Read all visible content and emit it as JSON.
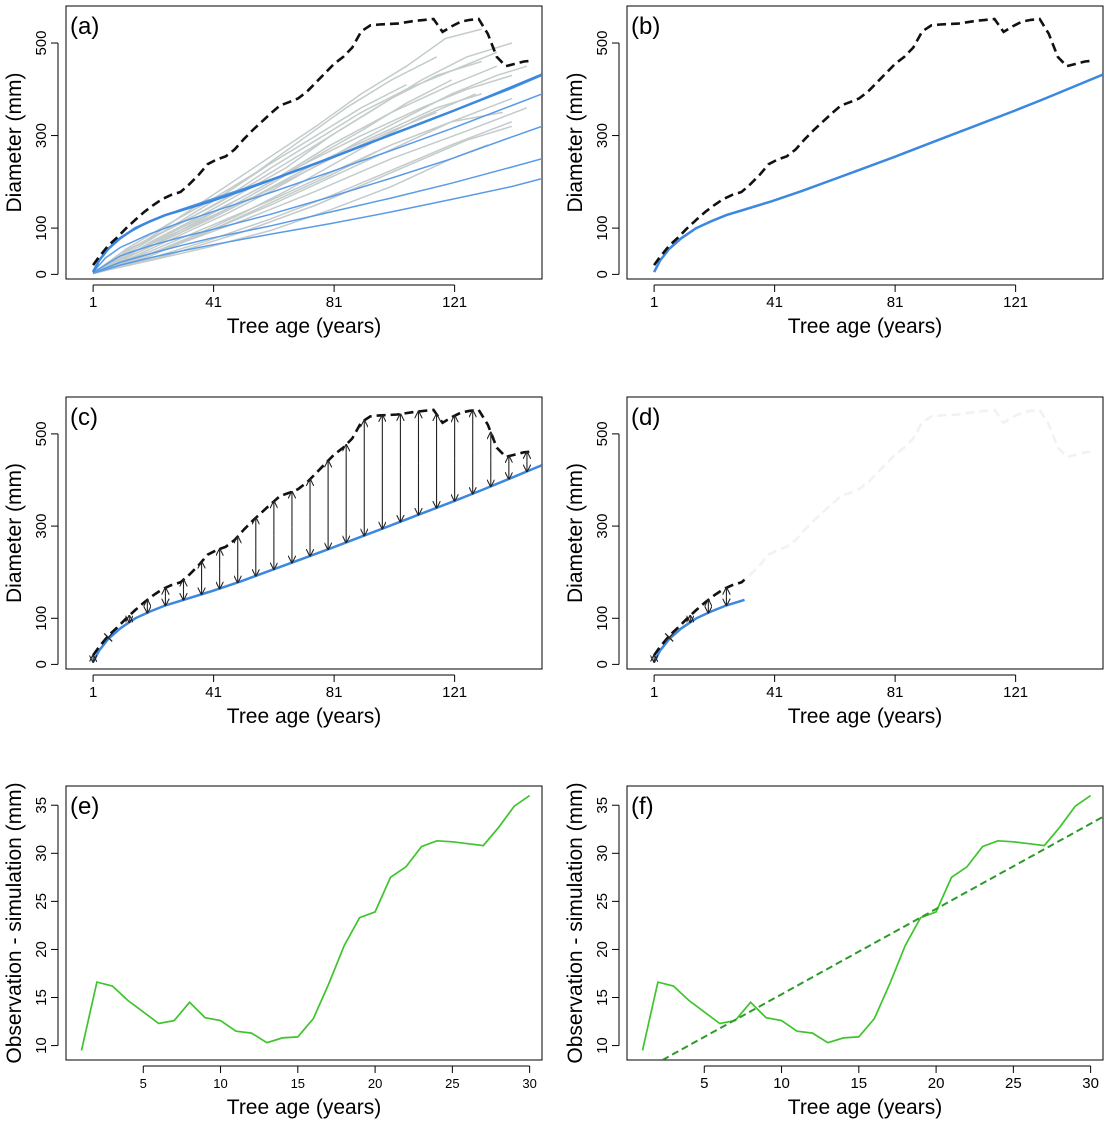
{
  "colors": {
    "observed": "#111111",
    "sample_trees": "#c3cbcb",
    "simulation": "#3c87e0",
    "simulation_light": "#5a9be6",
    "residual": "#3dc52b",
    "trend": "#2e9a2a",
    "arrow": "#222222"
  },
  "chart_data": [
    {
      "id": "a",
      "type": "line",
      "panel_label": "(a)",
      "xlabel": "Tree age (years)",
      "ylabel": "Diameter (mm)",
      "xlim": [
        -8,
        150
      ],
      "ylim": [
        -10,
        580
      ],
      "xticks": [
        1,
        41,
        81,
        121
      ],
      "yticks": [
        0,
        100,
        300,
        500
      ],
      "grid": false,
      "legend": "none",
      "observed_max": {
        "x": [
          1,
          3,
          6,
          9,
          12,
          15,
          18,
          21,
          24,
          27,
          30,
          33,
          36,
          39,
          42,
          45,
          48,
          51,
          54,
          57,
          60,
          63,
          66,
          69,
          72,
          75,
          78,
          81,
          84,
          87,
          90,
          93,
          96,
          99,
          102,
          105,
          108,
          111,
          114,
          117,
          120,
          123,
          126,
          129,
          132,
          135,
          138,
          141,
          144,
          147
        ],
        "y": [
          20,
          38,
          62,
          80,
          100,
          118,
          135,
          150,
          163,
          172,
          178,
          195,
          215,
          238,
          248,
          255,
          270,
          292,
          312,
          330,
          348,
          365,
          372,
          380,
          395,
          415,
          435,
          455,
          470,
          490,
          525,
          538,
          540,
          541,
          542,
          545,
          548,
          550,
          552,
          524,
          536,
          546,
          550,
          552,
          520,
          470,
          450,
          455,
          460,
          462
        ]
      },
      "simulations": [
        {
          "x": [
            1,
            5,
            10,
            20,
            30,
            40,
            60,
            80,
            100,
            120,
            140,
            150
          ],
          "y": [
            8,
            50,
            80,
            115,
            140,
            162,
            205,
            252,
            302,
            352,
            402,
            430
          ]
        },
        {
          "x": [
            1,
            5,
            10,
            20,
            30,
            40,
            60,
            80,
            100,
            120,
            140,
            150
          ],
          "y": [
            5,
            35,
            58,
            88,
            112,
            134,
            177,
            222,
            268,
            315,
            365,
            390
          ]
        },
        {
          "x": [
            1,
            10,
            20,
            30,
            40,
            60,
            80,
            100,
            120,
            140,
            150
          ],
          "y": [
            4,
            40,
            62,
            80,
            96,
            130,
            168,
            208,
            250,
            297,
            320
          ]
        },
        {
          "x": [
            1,
            10,
            20,
            30,
            40,
            60,
            80,
            100,
            120,
            140,
            150
          ],
          "y": [
            3,
            26,
            45,
            62,
            78,
            105,
            135,
            165,
            197,
            232,
            250
          ]
        },
        {
          "x": [
            1,
            10,
            20,
            30,
            40,
            60,
            80,
            100,
            120,
            140,
            150
          ],
          "y": [
            2,
            20,
            36,
            50,
            63,
            87,
            110,
            135,
            162,
            190,
            207
          ]
        }
      ],
      "highlight": {
        "x": [
          1,
          3,
          6,
          10,
          15,
          20,
          25,
          30,
          40,
          50,
          60,
          70,
          80,
          90,
          100,
          110,
          120,
          130,
          140,
          150
        ],
        "y": [
          5,
          30,
          55,
          78,
          100,
          115,
          128,
          138,
          158,
          180,
          204,
          228,
          252,
          277,
          302,
          327,
          352,
          378,
          405,
          432
        ]
      },
      "samples": [
        {
          "x": [
            1,
            10,
            20,
            30,
            45,
            60,
            75,
            90,
            105,
            118,
            130
          ],
          "y": [
            3,
            40,
            80,
            125,
            190,
            255,
            320,
            390,
            450,
            510,
            530
          ]
        },
        {
          "x": [
            1,
            10,
            20,
            35,
            50,
            65,
            80,
            95,
            110,
            125,
            140
          ],
          "y": [
            2,
            30,
            70,
            120,
            175,
            230,
            300,
            360,
            420,
            470,
            500
          ]
        },
        {
          "x": [
            1,
            15,
            30,
            45,
            60,
            75,
            90,
            105,
            120,
            135
          ],
          "y": [
            4,
            60,
            110,
            165,
            230,
            290,
            350,
            400,
            440,
            480
          ]
        },
        {
          "x": [
            1,
            12,
            25,
            40,
            55,
            70,
            85,
            100,
            115
          ],
          "y": [
            2,
            55,
            105,
            160,
            220,
            290,
            360,
            420,
            470
          ]
        },
        {
          "x": [
            1,
            15,
            30,
            45,
            60,
            75,
            90,
            105,
            120,
            135,
            145
          ],
          "y": [
            3,
            40,
            85,
            130,
            180,
            235,
            290,
            340,
            390,
            430,
            450
          ]
        },
        {
          "x": [
            1,
            20,
            40,
            60,
            80,
            100,
            120,
            140
          ],
          "y": [
            2,
            45,
            95,
            150,
            210,
            270,
            330,
            380
          ]
        },
        {
          "x": [
            1,
            20,
            40,
            60,
            80,
            100,
            120,
            135
          ],
          "y": [
            2,
            60,
            130,
            200,
            280,
            350,
            410,
            450
          ]
        },
        {
          "x": [
            1,
            25,
            50,
            75,
            100,
            125,
            145
          ],
          "y": [
            2,
            55,
            115,
            180,
            250,
            310,
            360
          ]
        },
        {
          "x": [
            1,
            10,
            25,
            40,
            55,
            70,
            85,
            100,
            115,
            130
          ],
          "y": [
            3,
            45,
            95,
            145,
            200,
            260,
            320,
            380,
            430,
            460
          ]
        },
        {
          "x": [
            1,
            20,
            40,
            60,
            80,
            100,
            120,
            140
          ],
          "y": [
            2,
            35,
            75,
            120,
            170,
            225,
            280,
            330
          ]
        },
        {
          "x": [
            1,
            15,
            30,
            45,
            60,
            75,
            90,
            105
          ],
          "y": [
            3,
            55,
            115,
            175,
            240,
            300,
            360,
            410
          ]
        },
        {
          "x": [
            1,
            20,
            40,
            60,
            80,
            100,
            120,
            132
          ],
          "y": [
            2,
            30,
            60,
            95,
            140,
            190,
            250,
            280
          ]
        },
        {
          "x": [
            1,
            15,
            30,
            50,
            70,
            90,
            110,
            125,
            140
          ],
          "y": [
            3,
            50,
            100,
            165,
            235,
            300,
            360,
            400,
            430
          ]
        },
        {
          "x": [
            1,
            25,
            50,
            75,
            100,
            125,
            140
          ],
          "y": [
            2,
            40,
            90,
            150,
            220,
            290,
            320
          ]
        },
        {
          "x": [
            1,
            15,
            30,
            45,
            60,
            75,
            90,
            105,
            120
          ],
          "y": [
            2,
            45,
            90,
            140,
            195,
            255,
            310,
            370,
            420
          ]
        },
        {
          "x": [
            1,
            20,
            40,
            60,
            80,
            100,
            115
          ],
          "y": [
            3,
            60,
            120,
            185,
            250,
            310,
            350
          ]
        },
        {
          "x": [
            1,
            10,
            20,
            35,
            50,
            65,
            80,
            95,
            110,
            128
          ],
          "y": [
            2,
            20,
            45,
            85,
            130,
            180,
            235,
            290,
            340,
            390
          ]
        },
        {
          "x": [
            1,
            20,
            40,
            60,
            80,
            100,
            120,
            137
          ],
          "y": [
            2,
            50,
            105,
            160,
            220,
            280,
            330,
            350
          ]
        },
        {
          "x": [
            1,
            15,
            35,
            55,
            75,
            95,
            115,
            130
          ],
          "y": [
            3,
            50,
            110,
            170,
            240,
            300,
            360,
            390
          ]
        },
        {
          "x": [
            1,
            20,
            40,
            60,
            80,
            95
          ],
          "y": [
            2,
            40,
            95,
            155,
            215,
            265
          ]
        }
      ]
    },
    {
      "id": "b",
      "type": "line",
      "panel_label": "(b)",
      "xlabel": "Tree age (years)",
      "ylabel": "Diameter (mm)",
      "xlim": [
        -8,
        150
      ],
      "ylim": [
        -10,
        580
      ],
      "xticks": [
        1,
        41,
        81,
        121
      ],
      "yticks": [
        0,
        100,
        300,
        500
      ],
      "grid": false,
      "legend": "none"
    },
    {
      "id": "c",
      "type": "line",
      "panel_label": "(c)",
      "xlabel": "Tree age (years)",
      "ylabel": "Diameter (mm)",
      "xlim": [
        -8,
        150
      ],
      "ylim": [
        -10,
        580
      ],
      "xticks": [
        1,
        41,
        81,
        121
      ],
      "yticks": [
        0,
        100,
        300,
        500
      ],
      "grid": false,
      "legend": "none",
      "arrow_ages": [
        1,
        6,
        13,
        19,
        25,
        31,
        37,
        43,
        49,
        55,
        61,
        67,
        73,
        79,
        85,
        91,
        97,
        103,
        109,
        115,
        121,
        127,
        133,
        139,
        145
      ]
    },
    {
      "id": "d",
      "type": "line",
      "panel_label": "(d)",
      "xlabel": "Tree age (years)",
      "ylabel": "Diameter (mm)",
      "xlim": [
        -8,
        150
      ],
      "ylim": [
        -10,
        580
      ],
      "xticks": [
        1,
        41,
        81,
        121
      ],
      "yticks": [
        0,
        100,
        300,
        500
      ],
      "grid": false,
      "legend": "none",
      "cutoff_age": 31,
      "arrow_ages": [
        1,
        6,
        13,
        19,
        25
      ]
    },
    {
      "id": "e",
      "type": "line",
      "panel_label": "(e)",
      "xlabel": "Tree age (years)",
      "ylabel": "Observation - simulation (mm)",
      "xlim": [
        0,
        30.8
      ],
      "ylim": [
        8.5,
        37
      ],
      "xticks": [
        5,
        10,
        15,
        20,
        25,
        30
      ],
      "yticks": [
        10,
        15,
        20,
        25,
        30,
        35
      ],
      "grid": false,
      "legend": "none",
      "series": [
        {
          "x": [
            1,
            2,
            3,
            4,
            5,
            6,
            7,
            8,
            9,
            10,
            11,
            12,
            13,
            14,
            15,
            16,
            17,
            18,
            19,
            20,
            21,
            22,
            23,
            24,
            25,
            26,
            27,
            28,
            29,
            30
          ],
          "y": [
            9.5,
            16.6,
            16.2,
            14.7,
            13.5,
            12.3,
            12.6,
            14.5,
            12.9,
            12.6,
            11.5,
            11.3,
            10.3,
            10.8,
            10.9,
            12.8,
            16.4,
            20.4,
            23.3,
            23.9,
            27.5,
            28.6,
            30.7,
            31.3,
            31.2,
            31.0,
            30.8,
            32.7,
            34.9,
            36.0
          ]
        }
      ]
    },
    {
      "id": "f",
      "type": "line",
      "panel_label": "(f)",
      "xlabel": "Tree age (years)",
      "ylabel": "Observation - simulation (mm)",
      "xlim": [
        0,
        30.8
      ],
      "ylim": [
        8.5,
        37
      ],
      "xticks": [
        5,
        10,
        15,
        20,
        25,
        30
      ],
      "yticks": [
        10,
        15,
        20,
        25,
        30,
        35
      ],
      "grid": false,
      "legend": "none",
      "series": [
        {
          "x": [
            1,
            2,
            3,
            4,
            5,
            6,
            7,
            8,
            9,
            10,
            11,
            12,
            13,
            14,
            15,
            16,
            17,
            18,
            19,
            20,
            21,
            22,
            23,
            24,
            25,
            26,
            27,
            28,
            29,
            30
          ],
          "y": [
            9.5,
            16.6,
            16.2,
            14.7,
            13.5,
            12.3,
            12.6,
            14.5,
            12.9,
            12.6,
            11.5,
            11.3,
            10.3,
            10.8,
            10.9,
            12.8,
            16.4,
            20.4,
            23.3,
            23.9,
            27.5,
            28.6,
            30.7,
            31.3,
            31.2,
            31.0,
            30.8,
            32.7,
            34.9,
            36.0
          ]
        }
      ],
      "trend": {
        "x": [
          2.3,
          30.8
        ],
        "y": [
          8.5,
          33.8
        ]
      }
    }
  ]
}
